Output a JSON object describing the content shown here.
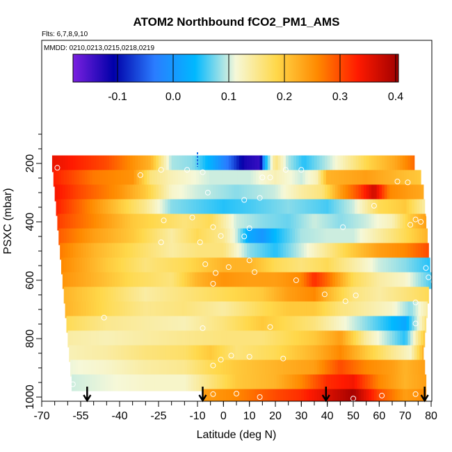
{
  "chart_data": {
    "type": "heatmap",
    "title": "ATOM2 Northbound fCO2_PM1_AMS",
    "flights_note": "Flts: 6,7,8,9,10",
    "dates_note": "MMDD: 0210,0213,0215,0218,0219",
    "xlabel": "Latitude (deg N)",
    "ylabel": "PSXC (mbar)",
    "xlim": [
      -70,
      80
    ],
    "ylim": [
      1000,
      100
    ],
    "x_ticks": [
      -70,
      -55,
      -40,
      -25,
      -10,
      0,
      10,
      20,
      30,
      40,
      50,
      60,
      70,
      80
    ],
    "y_ticks": [
      200,
      400,
      600,
      800,
      1000
    ],
    "colorbar": {
      "range": [
        -0.18,
        0.405
      ],
      "ticks": [
        -0.1,
        0.0,
        0.1,
        0.2,
        0.3,
        0.4
      ],
      "tick_labels": [
        "-0.1",
        "0.0",
        "0.1",
        "0.2",
        "0.3",
        "0.4"
      ],
      "colors": [
        "#7a20e0",
        "#0000a8",
        "#2a7cff",
        "#00b8ff",
        "#f6f8d8",
        "#ffd84a",
        "#ff8a00",
        "#ff1a00",
        "#a00000"
      ]
    },
    "pressure_bands": [
      {
        "p": 200,
        "lat_range": [
          -66,
          73.5
        ],
        "knots": [
          [
            -66,
            0.35
          ],
          [
            -45,
            0.3
          ],
          [
            -28,
            0.22
          ],
          [
            -20,
            0.09
          ],
          [
            -12,
            0.08
          ],
          [
            -5,
            0.03
          ],
          [
            3,
            -0.05
          ],
          [
            8,
            -0.12
          ],
          [
            14,
            -0.14
          ],
          [
            16,
            0.03
          ],
          [
            20,
            0.16
          ],
          [
            25,
            0.09
          ],
          [
            31,
            0.05
          ],
          [
            41,
            0.1
          ],
          [
            56,
            0.19
          ],
          [
            66,
            0.23
          ],
          [
            73.5,
            0.28
          ]
        ]
      },
      {
        "p": 250,
        "lat_range": [
          -65.5,
          76
        ],
        "knots": [
          [
            -65.5,
            0.33
          ],
          [
            -50,
            0.27
          ],
          [
            -35,
            0.25
          ],
          [
            -28,
            0.16
          ],
          [
            -20,
            0.13
          ],
          [
            -5,
            0.1
          ],
          [
            10,
            0.1
          ],
          [
            20,
            0.13
          ],
          [
            30,
            0.1
          ],
          [
            36,
            0.13
          ],
          [
            40,
            0.22
          ],
          [
            55,
            0.24
          ],
          [
            70,
            0.21
          ],
          [
            76,
            0.2
          ]
        ]
      },
      {
        "p": 300,
        "lat_range": [
          -65,
          77
        ],
        "knots": [
          [
            -65,
            0.34
          ],
          [
            -55,
            0.3
          ],
          [
            -40,
            0.25
          ],
          [
            -30,
            0.2
          ],
          [
            -20,
            0.12
          ],
          [
            -10,
            0.1
          ],
          [
            5,
            0.08
          ],
          [
            20,
            0.1
          ],
          [
            30,
            0.14
          ],
          [
            38,
            0.16
          ],
          [
            45,
            0.24
          ],
          [
            52,
            0.3
          ],
          [
            58,
            0.37
          ],
          [
            64,
            0.26
          ],
          [
            72,
            0.24
          ],
          [
            77,
            0.23
          ]
        ]
      },
      {
        "p": 350,
        "lat_range": [
          -64.5,
          77.5
        ],
        "knots": [
          [
            -64.5,
            0.33
          ],
          [
            -55,
            0.28
          ],
          [
            -40,
            0.2
          ],
          [
            -30,
            0.15
          ],
          [
            -20,
            0.08
          ],
          [
            0,
            0.05
          ],
          [
            10,
            0.06
          ],
          [
            25,
            0.08
          ],
          [
            40,
            0.06
          ],
          [
            50,
            0.1
          ],
          [
            60,
            0.18
          ],
          [
            70,
            0.2
          ],
          [
            77.5,
            0.14
          ]
        ]
      },
      {
        "p": 400,
        "lat_range": [
          -64,
          78
        ],
        "knots": [
          [
            -64,
            0.31
          ],
          [
            -50,
            0.26
          ],
          [
            -35,
            0.2
          ],
          [
            -25,
            0.18
          ],
          [
            -15,
            0.16
          ],
          [
            -5,
            0.18
          ],
          [
            5,
            0.1
          ],
          [
            15,
            0.08
          ],
          [
            25,
            0.07
          ],
          [
            35,
            0.1
          ],
          [
            45,
            0.08
          ],
          [
            55,
            0.1
          ],
          [
            65,
            0.13
          ],
          [
            72,
            0.2
          ],
          [
            78,
            0.24
          ]
        ]
      },
      {
        "p": 450,
        "lat_range": [
          -63.5,
          78.5
        ],
        "knots": [
          [
            -63.5,
            0.29
          ],
          [
            -50,
            0.24
          ],
          [
            -35,
            0.2
          ],
          [
            -20,
            0.14
          ],
          [
            -10,
            0.18
          ],
          [
            0,
            0.15
          ],
          [
            5,
            0.1
          ],
          [
            10,
            0.02
          ],
          [
            15,
            0.0
          ],
          [
            20,
            0.04
          ],
          [
            30,
            0.09
          ],
          [
            40,
            0.1
          ],
          [
            50,
            0.1
          ],
          [
            60,
            0.14
          ],
          [
            70,
            0.18
          ],
          [
            78.5,
            0.22
          ]
        ]
      },
      {
        "p": 500,
        "lat_range": [
          -63,
          79
        ],
        "knots": [
          [
            -63,
            0.27
          ],
          [
            -50,
            0.22
          ],
          [
            -35,
            0.18
          ],
          [
            -20,
            0.14
          ],
          [
            -10,
            0.16
          ],
          [
            0,
            0.16
          ],
          [
            10,
            0.08
          ],
          [
            20,
            0.05
          ],
          [
            30,
            0.1
          ],
          [
            40,
            0.15
          ],
          [
            50,
            0.2
          ],
          [
            60,
            0.24
          ],
          [
            70,
            0.26
          ],
          [
            79,
            0.3
          ]
        ]
      },
      {
        "p": 550,
        "lat_range": [
          -62.5,
          79.5
        ],
        "knots": [
          [
            -62.5,
            0.26
          ],
          [
            -45,
            0.2
          ],
          [
            -30,
            0.16
          ],
          [
            -15,
            0.18
          ],
          [
            0,
            0.22
          ],
          [
            10,
            0.22
          ],
          [
            20,
            0.18
          ],
          [
            30,
            0.16
          ],
          [
            40,
            0.18
          ],
          [
            50,
            0.14
          ],
          [
            60,
            0.1
          ],
          [
            70,
            0.08
          ],
          [
            79.5,
            0.05
          ]
        ]
      },
      {
        "p": 600,
        "lat_range": [
          -62,
          80
        ],
        "knots": [
          [
            -62,
            0.25
          ],
          [
            -50,
            0.22
          ],
          [
            -35,
            0.18
          ],
          [
            -20,
            0.16
          ],
          [
            -10,
            0.22
          ],
          [
            0,
            0.25
          ],
          [
            10,
            0.24
          ],
          [
            20,
            0.24
          ],
          [
            30,
            0.26
          ],
          [
            35,
            0.32
          ],
          [
            40,
            0.28
          ],
          [
            50,
            0.18
          ],
          [
            60,
            0.14
          ],
          [
            70,
            0.12
          ],
          [
            80,
            0.06
          ]
        ]
      },
      {
        "p": 650,
        "lat_range": [
          -61.5,
          79
        ],
        "knots": [
          [
            -61.5,
            0.22
          ],
          [
            -45,
            0.18
          ],
          [
            -30,
            0.14
          ],
          [
            -15,
            0.16
          ],
          [
            0,
            0.18
          ],
          [
            15,
            0.2
          ],
          [
            25,
            0.24
          ],
          [
            35,
            0.26
          ],
          [
            40,
            0.22
          ],
          [
            50,
            0.16
          ],
          [
            60,
            0.14
          ],
          [
            70,
            0.16
          ],
          [
            79,
            0.18
          ]
        ]
      },
      {
        "p": 700,
        "lat_range": [
          -61,
          78.5
        ],
        "knots": [
          [
            -61,
            0.22
          ],
          [
            -45,
            0.18
          ],
          [
            -30,
            0.15
          ],
          [
            -15,
            0.16
          ],
          [
            0,
            0.14
          ],
          [
            15,
            0.18
          ],
          [
            25,
            0.2
          ],
          [
            35,
            0.2
          ],
          [
            45,
            0.16
          ],
          [
            55,
            0.14
          ],
          [
            65,
            0.12
          ],
          [
            72,
            0.08
          ],
          [
            78.5,
            0.14
          ]
        ]
      },
      {
        "p": 750,
        "lat_range": [
          -60.5,
          78
        ],
        "knots": [
          [
            -60.5,
            0.18
          ],
          [
            -45,
            0.15
          ],
          [
            -30,
            0.14
          ],
          [
            -15,
            0.13
          ],
          [
            0,
            0.16
          ],
          [
            15,
            0.2
          ],
          [
            25,
            0.18
          ],
          [
            35,
            0.16
          ],
          [
            45,
            0.12
          ],
          [
            55,
            0.08
          ],
          [
            65,
            0.04
          ],
          [
            70,
            0.02
          ],
          [
            78,
            0.16
          ]
        ]
      },
      {
        "p": 800,
        "lat_range": [
          -60,
          77.5
        ],
        "knots": [
          [
            -60,
            0.14
          ],
          [
            -45,
            0.13
          ],
          [
            -30,
            0.14
          ],
          [
            -15,
            0.15
          ],
          [
            0,
            0.16
          ],
          [
            15,
            0.16
          ],
          [
            25,
            0.18
          ],
          [
            35,
            0.2
          ],
          [
            45,
            0.24
          ],
          [
            55,
            0.14
          ],
          [
            65,
            0.08
          ],
          [
            70,
            0.05
          ],
          [
            77.5,
            0.2
          ]
        ]
      },
      {
        "p": 850,
        "lat_range": [
          -59.5,
          77
        ],
        "knots": [
          [
            -59.5,
            0.13
          ],
          [
            -45,
            0.14
          ],
          [
            -30,
            0.16
          ],
          [
            -15,
            0.17
          ],
          [
            -5,
            0.2
          ],
          [
            5,
            0.16
          ],
          [
            20,
            0.18
          ],
          [
            35,
            0.22
          ],
          [
            45,
            0.26
          ],
          [
            55,
            0.2
          ],
          [
            65,
            0.15
          ],
          [
            72,
            0.12
          ],
          [
            77,
            0.22
          ]
        ]
      },
      {
        "p": 900,
        "lat_range": [
          -59,
          77.5
        ],
        "knots": [
          [
            -59,
            0.11
          ],
          [
            -45,
            0.12
          ],
          [
            -30,
            0.14
          ],
          [
            -15,
            0.15
          ],
          [
            -5,
            0.18
          ],
          [
            5,
            0.2
          ],
          [
            20,
            0.22
          ],
          [
            35,
            0.24
          ],
          [
            45,
            0.3
          ],
          [
            55,
            0.26
          ],
          [
            65,
            0.24
          ],
          [
            70,
            0.22
          ],
          [
            77.5,
            0.24
          ]
        ]
      },
      {
        "p": 950,
        "lat_range": [
          -58.5,
          78
        ],
        "knots": [
          [
            -58.5,
            0.1
          ],
          [
            -45,
            0.11
          ],
          [
            -30,
            0.12
          ],
          [
            -15,
            0.12
          ],
          [
            -5,
            0.16
          ],
          [
            5,
            0.2
          ],
          [
            20,
            0.22
          ],
          [
            30,
            0.26
          ],
          [
            40,
            0.32
          ],
          [
            50,
            0.34
          ],
          [
            60,
            0.26
          ],
          [
            70,
            0.22
          ],
          [
            78,
            0.24
          ]
        ]
      },
      {
        "p": 1000,
        "lat_range": [
          -8,
          78
        ],
        "knots": [
          [
            -8,
            0.24
          ],
          [
            5,
            0.26
          ],
          [
            20,
            0.3
          ],
          [
            30,
            0.32
          ],
          [
            40,
            0.36
          ],
          [
            50,
            0.4
          ],
          [
            60,
            0.3
          ],
          [
            70,
            0.24
          ],
          [
            78,
            0.26
          ]
        ]
      }
    ],
    "sample_points": [
      [
        -64,
        215
      ],
      [
        -32,
        240
      ],
      [
        -24,
        222
      ],
      [
        -14,
        222
      ],
      [
        -8,
        230
      ],
      [
        15,
        248
      ],
      [
        18,
        248
      ],
      [
        24,
        222
      ],
      [
        30,
        222
      ],
      [
        67,
        262
      ],
      [
        71,
        265
      ],
      [
        -6,
        300
      ],
      [
        8,
        325
      ],
      [
        14,
        318
      ],
      [
        58,
        345
      ],
      [
        74,
        392
      ],
      [
        79,
        376
      ],
      [
        -23,
        395
      ],
      [
        -12,
        385
      ],
      [
        -4,
        418
      ],
      [
        -1,
        448
      ],
      [
        8,
        450
      ],
      [
        10,
        422
      ],
      [
        46,
        418
      ],
      [
        72,
        410
      ],
      [
        76,
        400
      ],
      [
        -24,
        470
      ],
      [
        -9,
        470
      ],
      [
        10,
        532
      ],
      [
        -7,
        545
      ],
      [
        2,
        555
      ],
      [
        12,
        572
      ],
      [
        -3,
        575
      ],
      [
        78,
        558
      ],
      [
        79,
        590
      ],
      [
        81,
        605
      ],
      [
        -4,
        612
      ],
      [
        28,
        600
      ],
      [
        39,
        648
      ],
      [
        47,
        672
      ],
      [
        51,
        652
      ],
      [
        74,
        676
      ],
      [
        -46,
        728
      ],
      [
        -8,
        764
      ],
      [
        18,
        760
      ],
      [
        74,
        748
      ],
      [
        -1,
        872
      ],
      [
        -4,
        892
      ],
      [
        3,
        858
      ],
      [
        10,
        862
      ],
      [
        23,
        868
      ],
      [
        -58,
        956
      ],
      [
        -4,
        990
      ],
      [
        5,
        988
      ],
      [
        14,
        1000
      ],
      [
        50,
        1005
      ],
      [
        61,
        995
      ],
      [
        74,
        990
      ]
    ],
    "arrow_latitudes": [
      -52.5,
      -8,
      39.5,
      77.5
    ],
    "marker_latitude": -10
  }
}
